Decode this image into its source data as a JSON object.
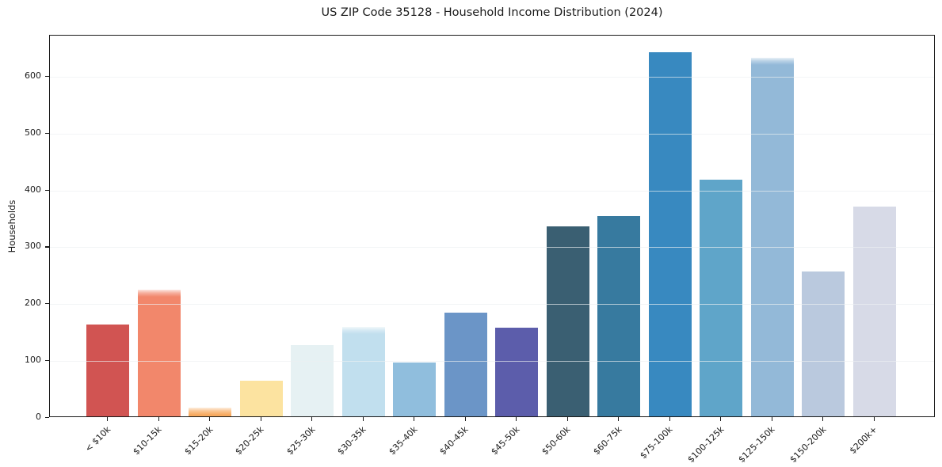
{
  "chart_data": {
    "type": "bar",
    "title": "US ZIP Code 35128 - Household Income Distribution (2024)",
    "xlabel": "",
    "ylabel": "Households",
    "categories": [
      "< $10k",
      "$10-15k",
      "$15-20k",
      "$20-25k",
      "$25-30k",
      "$30-35k",
      "$35-40k",
      "$40-45k",
      "$45-50k",
      "$50-60k",
      "$60-75k",
      "$75-100k",
      "$100-125k",
      "$125-150k",
      "$150-200k",
      "$200k+"
    ],
    "values": [
      162,
      223,
      16,
      62,
      125,
      157,
      94,
      182,
      156,
      334,
      352,
      640,
      416,
      630,
      254,
      369
    ],
    "bar_colors": [
      "#d15452",
      "#f2876b",
      "#f7a95e",
      "#fce3a0",
      "#e6f1f3",
      "#c1dfee",
      "#90bedd",
      "#6b95c7",
      "#5c5dab",
      "#3a5f72",
      "#377a9f",
      "#3889c0",
      "#5fa5c9",
      "#93b9d8",
      "#bac9de",
      "#d7dae7"
    ],
    "soft_top_indices": [
      1,
      2,
      5,
      13
    ],
    "ylim": [
      0,
      672
    ],
    "yticks": [
      0,
      100,
      200,
      300,
      400,
      500,
      600
    ],
    "grid": "horizontal",
    "legend": "none",
    "style": {
      "grid_color": "rgba(236,239,241,0.65)",
      "spine_color": "#1a1a1a",
      "text_color": "#1a1a1a",
      "background": "#ffffff"
    }
  }
}
